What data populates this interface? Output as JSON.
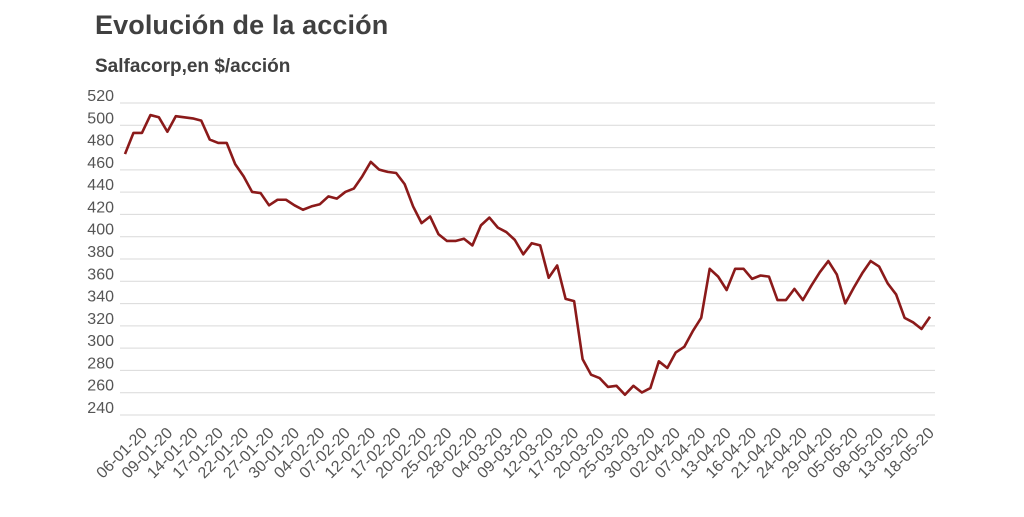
{
  "title": "Evolución de la acción",
  "subtitle": "Salfacorp,en $/acción",
  "colors": {
    "line": "#8b1a1a",
    "grid": "#d9d9d9",
    "text": "#404040"
  },
  "chart_data": {
    "type": "line",
    "title": "Evolución de la acción",
    "subtitle": "Salfacorp,en $/acción",
    "xlabel": "",
    "ylabel": "",
    "ylim": [
      240,
      520
    ],
    "yticks": [
      240,
      260,
      280,
      300,
      320,
      340,
      360,
      380,
      400,
      420,
      440,
      460,
      480,
      500,
      520
    ],
    "grid": true,
    "legend": "none",
    "xticklabels": [
      "06-01-20",
      "09-01-20",
      "14-01-20",
      "17-01-20",
      "22-01-20",
      "27-01-20",
      "30-01-20",
      "04-02-20",
      "07-02-20",
      "12-02-20",
      "17-02-20",
      "20-02-20",
      "25-02-20",
      "28-02-20",
      "04-03-20",
      "09-03-20",
      "12-03-20",
      "17-03-20",
      "20-03-20",
      "25-03-20",
      "30-03-20",
      "02-04-20",
      "07-04-20",
      "13-04-20",
      "16-04-20",
      "21-04-20",
      "24-04-20",
      "29-04-20",
      "05-05-20",
      "08-05-20",
      "13-05-20",
      "18-05-20"
    ],
    "series": [
      {
        "values": [
          467,
          486,
          486,
          502,
          500,
          487,
          501,
          500,
          499,
          497,
          480,
          477,
          477,
          458,
          447,
          433,
          432,
          421,
          426,
          426,
          421,
          417,
          420,
          422,
          429,
          427,
          433,
          436,
          447,
          460,
          453,
          451,
          450,
          440,
          420,
          405,
          411,
          395,
          389,
          389,
          391,
          385,
          403,
          410,
          401,
          397,
          390,
          377,
          387,
          385,
          356,
          367,
          337,
          335,
          283,
          269,
          266,
          258,
          259,
          251,
          259,
          253,
          257,
          281,
          275,
          289,
          294,
          308,
          320,
          364,
          357,
          345,
          364,
          364,
          355,
          358,
          357,
          336,
          336,
          346,
          336,
          349,
          361,
          371,
          359,
          333,
          347,
          360,
          371,
          366,
          351,
          341,
          320,
          316,
          310,
          321
        ]
      }
    ]
  }
}
